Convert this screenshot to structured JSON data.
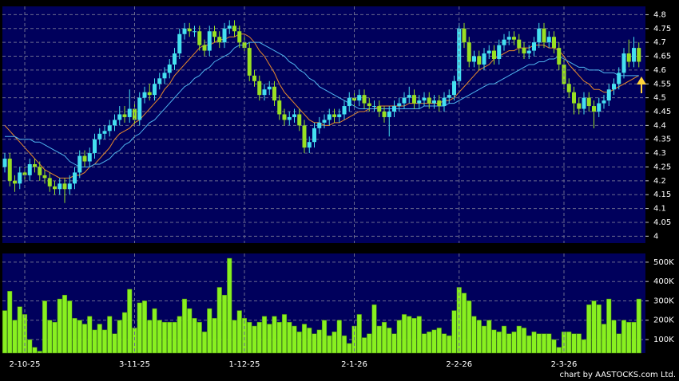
{
  "chart_data": [
    {
      "type": "candlestick",
      "open": [
        4.25,
        4.28,
        4.2,
        4.19,
        4.23,
        4.22,
        4.26,
        4.25,
        4.22,
        4.21,
        4.18,
        4.17,
        4.19,
        4.17,
        4.19,
        4.23,
        4.29,
        4.27,
        4.3,
        4.35,
        4.37,
        4.38,
        4.4,
        4.42,
        4.44,
        4.43,
        4.46,
        4.42,
        4.5,
        4.52,
        4.51,
        4.55,
        4.57,
        4.59,
        4.62,
        4.66,
        4.73,
        4.75,
        4.74,
        4.74,
        4.69,
        4.67,
        4.74,
        4.72,
        4.7,
        4.75,
        4.76,
        4.74,
        4.7,
        4.68,
        4.58,
        4.56,
        4.51,
        4.53,
        4.54,
        4.49,
        4.44,
        4.42,
        4.43,
        4.44,
        4.4,
        4.32,
        4.34,
        4.39,
        4.41,
        4.42,
        4.44,
        4.43,
        4.44,
        4.47,
        4.5,
        4.49,
        4.51,
        4.48,
        4.47,
        4.47,
        4.45,
        4.43,
        4.45,
        4.47,
        4.48,
        4.5,
        4.51,
        4.48,
        4.49,
        4.5,
        4.48,
        4.49,
        4.47,
        4.5,
        4.51,
        4.56,
        4.75,
        4.7,
        4.63,
        4.65,
        4.62,
        4.66,
        4.67,
        4.64,
        4.69,
        4.71,
        4.72,
        4.71,
        4.68,
        4.66,
        4.67,
        4.7,
        4.75,
        4.7,
        4.72,
        4.68,
        4.62,
        4.55,
        4.52,
        4.48,
        4.46,
        4.5,
        4.47,
        4.45,
        4.48,
        4.49,
        4.53,
        4.55,
        4.59,
        4.66,
        4.63,
        4.68
      ],
      "high": [
        4.3,
        4.3,
        4.22,
        4.25,
        4.25,
        4.28,
        4.28,
        4.27,
        4.24,
        4.23,
        4.2,
        4.21,
        4.21,
        4.22,
        4.25,
        4.31,
        4.31,
        4.32,
        4.37,
        4.39,
        4.4,
        4.42,
        4.44,
        4.47,
        4.47,
        4.53,
        4.48,
        4.52,
        4.54,
        4.55,
        4.57,
        4.59,
        4.61,
        4.64,
        4.68,
        4.75,
        4.77,
        4.77,
        4.76,
        4.76,
        4.71,
        4.76,
        4.76,
        4.74,
        4.77,
        4.78,
        4.78,
        4.76,
        4.72,
        4.7,
        4.6,
        4.58,
        4.55,
        4.56,
        4.56,
        4.51,
        4.46,
        4.45,
        4.46,
        4.46,
        4.42,
        4.36,
        4.41,
        4.43,
        4.44,
        4.46,
        4.46,
        4.46,
        4.49,
        4.52,
        4.52,
        4.53,
        4.53,
        4.5,
        4.49,
        4.49,
        4.47,
        4.47,
        4.49,
        4.5,
        4.52,
        4.54,
        4.53,
        4.51,
        4.52,
        4.52,
        4.51,
        4.51,
        4.52,
        4.53,
        4.58,
        4.77,
        4.77,
        4.72,
        4.67,
        4.67,
        4.68,
        4.69,
        4.69,
        4.71,
        4.73,
        4.74,
        4.74,
        4.73,
        4.7,
        4.69,
        4.72,
        4.77,
        4.77,
        4.74,
        4.74,
        4.7,
        4.64,
        4.57,
        4.54,
        4.5,
        4.52,
        4.52,
        4.49,
        4.5,
        4.51,
        4.55,
        4.57,
        4.61,
        4.68,
        4.71,
        4.72,
        4.7
      ],
      "low": [
        4.23,
        4.18,
        4.16,
        4.17,
        4.2,
        4.2,
        4.23,
        4.2,
        4.19,
        4.16,
        4.15,
        4.15,
        4.12,
        4.15,
        4.17,
        4.21,
        4.25,
        4.25,
        4.28,
        4.33,
        4.35,
        4.36,
        4.38,
        4.4,
        4.41,
        4.41,
        4.4,
        4.4,
        4.48,
        4.49,
        4.49,
        4.53,
        4.55,
        4.57,
        4.6,
        4.64,
        4.71,
        4.72,
        4.72,
        4.67,
        4.65,
        4.65,
        4.7,
        4.68,
        4.68,
        4.73,
        4.72,
        4.68,
        4.66,
        4.56,
        4.54,
        4.49,
        4.49,
        4.51,
        4.47,
        4.42,
        4.4,
        4.4,
        4.41,
        4.38,
        4.3,
        4.3,
        4.32,
        4.37,
        4.39,
        4.4,
        4.41,
        4.41,
        4.42,
        4.45,
        4.47,
        4.47,
        4.46,
        4.45,
        4.45,
        4.43,
        4.41,
        4.36,
        4.43,
        4.45,
        4.46,
        4.48,
        4.46,
        4.46,
        4.47,
        4.46,
        4.46,
        4.45,
        4.45,
        4.48,
        4.49,
        4.54,
        4.68,
        4.61,
        4.61,
        4.6,
        4.6,
        4.64,
        4.62,
        4.62,
        4.67,
        4.69,
        4.69,
        4.66,
        4.64,
        4.64,
        4.65,
        4.68,
        4.68,
        4.68,
        4.66,
        4.6,
        4.53,
        4.5,
        4.44,
        4.44,
        4.44,
        4.45,
        4.39,
        4.43,
        4.46,
        4.47,
        4.51,
        4.53,
        4.57,
        4.61,
        4.61,
        4.61
      ],
      "close": [
        4.28,
        4.2,
        4.19,
        4.23,
        4.22,
        4.26,
        4.25,
        4.22,
        4.21,
        4.18,
        4.17,
        4.19,
        4.17,
        4.19,
        4.23,
        4.29,
        4.27,
        4.3,
        4.35,
        4.37,
        4.38,
        4.4,
        4.42,
        4.44,
        4.43,
        4.46,
        4.42,
        4.5,
        4.52,
        4.51,
        4.55,
        4.57,
        4.59,
        4.62,
        4.66,
        4.73,
        4.75,
        4.74,
        4.74,
        4.69,
        4.67,
        4.74,
        4.72,
        4.7,
        4.75,
        4.76,
        4.74,
        4.7,
        4.68,
        4.58,
        4.56,
        4.51,
        4.53,
        4.54,
        4.49,
        4.44,
        4.42,
        4.43,
        4.44,
        4.4,
        4.32,
        4.34,
        4.39,
        4.41,
        4.42,
        4.44,
        4.43,
        4.44,
        4.47,
        4.5,
        4.49,
        4.51,
        4.48,
        4.47,
        4.47,
        4.45,
        4.43,
        4.45,
        4.47,
        4.48,
        4.5,
        4.51,
        4.48,
        4.49,
        4.5,
        4.48,
        4.49,
        4.47,
        4.5,
        4.51,
        4.56,
        4.75,
        4.7,
        4.63,
        4.65,
        4.62,
        4.66,
        4.67,
        4.64,
        4.69,
        4.71,
        4.72,
        4.71,
        4.68,
        4.66,
        4.67,
        4.7,
        4.75,
        4.7,
        4.72,
        4.68,
        4.62,
        4.55,
        4.52,
        4.48,
        4.46,
        4.5,
        4.47,
        4.45,
        4.48,
        4.49,
        4.53,
        4.55,
        4.59,
        4.66,
        4.63,
        4.68,
        4.63
      ],
      "up_color": "#44e0f0",
      "down_color": "#99e022",
      "series": [
        {
          "color": "#e8892a",
          "values": [
            4.4,
            4.38,
            4.36,
            4.34,
            4.32,
            4.3,
            4.28,
            4.26,
            4.24,
            4.23,
            4.22,
            4.21,
            4.21,
            4.21,
            4.22,
            4.22,
            4.23,
            4.25,
            4.26,
            4.28,
            4.3,
            4.32,
            4.35,
            4.37,
            4.38,
            4.39,
            4.41,
            4.42,
            4.44,
            4.46,
            4.48,
            4.5,
            4.53,
            4.55,
            4.58,
            4.6,
            4.62,
            4.64,
            4.66,
            4.68,
            4.69,
            4.69,
            4.7,
            4.71,
            4.71,
            4.72,
            4.72,
            4.73,
            4.73,
            4.72,
            4.7,
            4.67,
            4.65,
            4.62,
            4.59,
            4.55,
            4.52,
            4.5,
            4.48,
            4.46,
            4.44,
            4.42,
            4.41,
            4.41,
            4.4,
            4.4,
            4.41,
            4.41,
            4.42,
            4.43,
            4.44,
            4.45,
            4.45,
            4.46,
            4.46,
            4.47,
            4.47,
            4.47,
            4.47,
            4.47,
            4.47,
            4.48,
            4.48,
            4.48,
            4.48,
            4.48,
            4.48,
            4.48,
            4.49,
            4.49,
            4.5,
            4.52,
            4.54,
            4.56,
            4.58,
            4.6,
            4.61,
            4.62,
            4.64,
            4.65,
            4.66,
            4.67,
            4.67,
            4.68,
            4.68,
            4.68,
            4.69,
            4.69,
            4.69,
            4.68,
            4.68,
            4.67,
            4.65,
            4.62,
            4.6,
            4.58,
            4.56,
            4.55,
            4.53,
            4.53,
            4.52,
            4.52,
            4.53,
            4.54,
            4.55,
            4.56,
            4.57,
            4.58
          ]
        },
        {
          "color": "#4fb4ee",
          "values": [
            4.36,
            4.36,
            4.36,
            4.35,
            4.35,
            4.35,
            4.34,
            4.34,
            4.33,
            4.32,
            4.31,
            4.3,
            4.29,
            4.27,
            4.26,
            4.25,
            4.25,
            4.25,
            4.26,
            4.26,
            4.27,
            4.28,
            4.3,
            4.31,
            4.33,
            4.34,
            4.36,
            4.37,
            4.39,
            4.41,
            4.42,
            4.44,
            4.46,
            4.48,
            4.5,
            4.52,
            4.54,
            4.55,
            4.57,
            4.58,
            4.6,
            4.61,
            4.63,
            4.64,
            4.65,
            4.66,
            4.68,
            4.69,
            4.69,
            4.7,
            4.7,
            4.7,
            4.69,
            4.68,
            4.67,
            4.66,
            4.65,
            4.63,
            4.62,
            4.6,
            4.59,
            4.57,
            4.56,
            4.54,
            4.53,
            4.52,
            4.51,
            4.5,
            4.49,
            4.48,
            4.47,
            4.46,
            4.46,
            4.46,
            4.46,
            4.46,
            4.46,
            4.46,
            4.46,
            4.46,
            4.46,
            4.46,
            4.46,
            4.46,
            4.47,
            4.47,
            4.47,
            4.47,
            4.47,
            4.48,
            4.48,
            4.49,
            4.5,
            4.51,
            4.52,
            4.53,
            4.54,
            4.55,
            4.55,
            4.56,
            4.57,
            4.58,
            4.59,
            4.6,
            4.61,
            4.62,
            4.62,
            4.63,
            4.63,
            4.64,
            4.64,
            4.65,
            4.64,
            4.63,
            4.62,
            4.61,
            4.61,
            4.6,
            4.6,
            4.6,
            4.59,
            4.59,
            4.59,
            4.58,
            4.58,
            4.58,
            4.58,
            4.58
          ]
        }
      ],
      "ylim": [
        3.975,
        4.83
      ],
      "yticks": [
        4,
        4.05,
        4.1,
        4.15,
        4.2,
        4.25,
        4.3,
        4.35,
        4.4,
        4.45,
        4.5,
        4.55,
        4.6,
        4.65,
        4.7,
        4.75,
        4.8
      ],
      "grid": true
    },
    {
      "type": "bar",
      "categories": [
        null,
        null,
        null,
        null,
        "2-10-25",
        null,
        null,
        null,
        null,
        null,
        null,
        null,
        null,
        null,
        null,
        null,
        null,
        null,
        null,
        null,
        null,
        null,
        null,
        null,
        null,
        null,
        "3-11-25",
        null,
        null,
        null,
        null,
        null,
        null,
        null,
        null,
        null,
        null,
        null,
        null,
        null,
        null,
        null,
        null,
        null,
        null,
        null,
        null,
        null,
        "1-12-25",
        null,
        null,
        null,
        null,
        null,
        null,
        null,
        null,
        null,
        null,
        null,
        null,
        null,
        null,
        null,
        null,
        null,
        null,
        null,
        null,
        null,
        "2-1-26",
        null,
        null,
        null,
        null,
        null,
        null,
        null,
        null,
        null,
        null,
        null,
        null,
        null,
        null,
        null,
        null,
        null,
        null,
        null,
        null,
        "2-2-26",
        null,
        null,
        null,
        null,
        null,
        null,
        null,
        null,
        null,
        null,
        null,
        null,
        null,
        null,
        null,
        null,
        null,
        null,
        null,
        null,
        "2-3-26",
        null,
        null,
        null,
        null,
        null,
        null,
        null,
        null,
        null,
        null,
        null,
        null,
        null,
        null,
        null
      ],
      "values": [
        250000,
        350000,
        200000,
        270000,
        230000,
        100000,
        60000,
        40000,
        300000,
        200000,
        190000,
        310000,
        330000,
        300000,
        210000,
        200000,
        180000,
        220000,
        150000,
        180000,
        150000,
        220000,
        130000,
        200000,
        240000,
        360000,
        160000,
        290000,
        300000,
        200000,
        260000,
        200000,
        190000,
        190000,
        190000,
        220000,
        310000,
        260000,
        210000,
        190000,
        140000,
        260000,
        210000,
        370000,
        330000,
        520000,
        200000,
        250000,
        210000,
        190000,
        170000,
        190000,
        220000,
        180000,
        220000,
        190000,
        230000,
        190000,
        170000,
        140000,
        180000,
        160000,
        130000,
        150000,
        200000,
        120000,
        140000,
        200000,
        120000,
        80000,
        170000,
        230000,
        110000,
        130000,
        280000,
        170000,
        190000,
        160000,
        130000,
        200000,
        230000,
        220000,
        210000,
        220000,
        130000,
        140000,
        150000,
        160000,
        130000,
        120000,
        250000,
        370000,
        340000,
        300000,
        220000,
        200000,
        170000,
        200000,
        150000,
        140000,
        170000,
        130000,
        140000,
        170000,
        160000,
        120000,
        140000,
        130000,
        130000,
        130000,
        100000,
        60000,
        140000,
        140000,
        130000,
        130000,
        100000,
        280000,
        300000,
        280000,
        180000,
        310000,
        200000,
        130000,
        200000,
        190000,
        190000,
        310000
      ],
      "color": "#88f020",
      "ylim": [
        30000,
        545000
      ],
      "yticks": [
        {
          "value": 100000,
          "label": "100K"
        },
        {
          "value": 200000,
          "label": "200K"
        },
        {
          "value": 300000,
          "label": "300K"
        },
        {
          "value": 400000,
          "label": "400K"
        },
        {
          "value": 500000,
          "label": "500K"
        }
      ],
      "grid": true,
      "source": "chart by AASTOCKS.com Ltd."
    }
  ]
}
